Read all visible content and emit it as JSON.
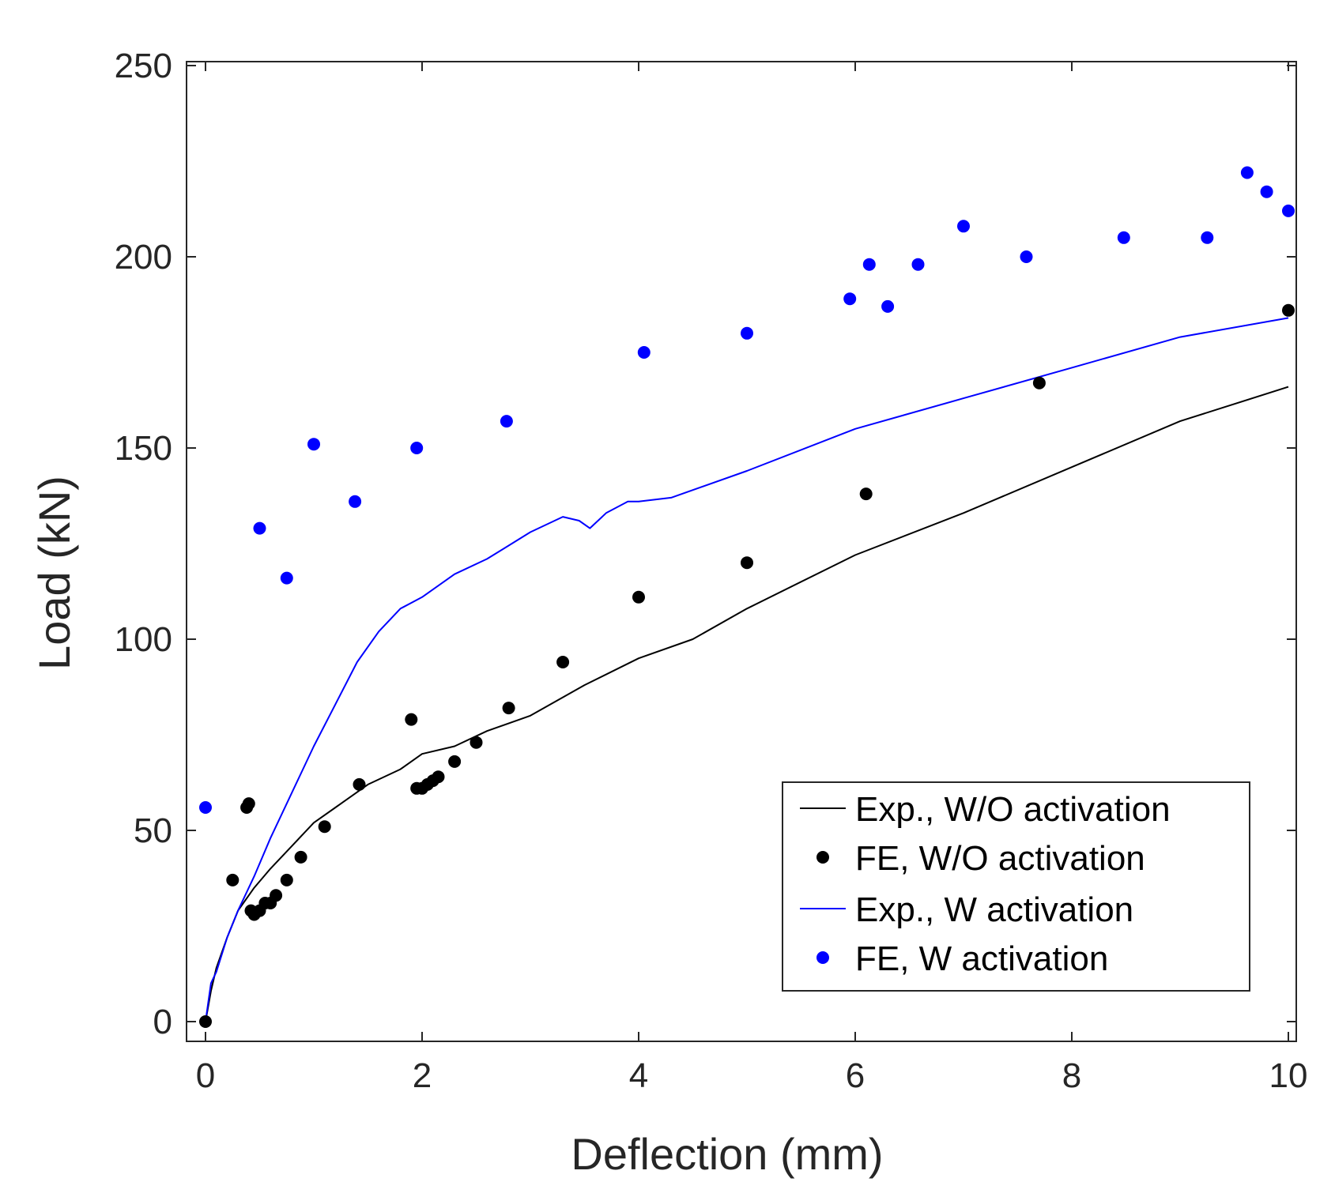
{
  "chart_data": {
    "type": "scatter",
    "title": "",
    "xlabel": "Deflection (mm)",
    "ylabel": "Load (kN)",
    "xlim": [
      0,
      10
    ],
    "ylim": [
      0,
      250
    ],
    "xticks": [
      0,
      2,
      4,
      6,
      8,
      10
    ],
    "yticks": [
      0,
      50,
      100,
      150,
      200,
      250
    ],
    "grid": false,
    "legend_position": "bottom-right",
    "series": [
      {
        "name": "Exp., W/O activation",
        "kind": "line",
        "color": "#000000",
        "x": [
          0,
          0.05,
          0.1,
          0.2,
          0.3,
          0.45,
          0.6,
          0.8,
          1.0,
          1.2,
          1.5,
          1.8,
          2.0,
          2.3,
          2.6,
          3.0,
          3.5,
          4.0,
          4.5,
          5.0,
          6.0,
          7.0,
          8.0,
          9.0,
          10.0
        ],
        "y": [
          0,
          8,
          14,
          22,
          29,
          35,
          40,
          46,
          52,
          56,
          62,
          66,
          70,
          72,
          76,
          80,
          88,
          95,
          100,
          108,
          122,
          133,
          145,
          157,
          166
        ]
      },
      {
        "name": "FE, W/O activation",
        "kind": "scatter",
        "color": "#000000",
        "x": [
          0,
          0.25,
          0.38,
          0.4,
          0.42,
          0.45,
          0.5,
          0.55,
          0.6,
          0.65,
          0.75,
          0.88,
          1.1,
          1.42,
          1.9,
          1.95,
          2.0,
          2.05,
          2.1,
          2.15,
          2.3,
          2.5,
          2.8,
          3.3,
          4.0,
          5.0,
          6.1,
          7.7,
          10.0
        ],
        "y": [
          0,
          37,
          56,
          57,
          29,
          28,
          29,
          31,
          31,
          33,
          37,
          43,
          51,
          62,
          79,
          61,
          61,
          62,
          63,
          64,
          68,
          73,
          82,
          94,
          111,
          120,
          138,
          167,
          186
        ]
      },
      {
        "name": "Exp., W activation",
        "kind": "line",
        "color": "#0000ff",
        "x": [
          0,
          0.05,
          0.1,
          0.2,
          0.3,
          0.45,
          0.6,
          0.8,
          1.0,
          1.2,
          1.4,
          1.6,
          1.8,
          2.0,
          2.3,
          2.6,
          3.0,
          3.3,
          3.45,
          3.55,
          3.7,
          3.9,
          4.0,
          4.3,
          5.0,
          6.0,
          7.0,
          8.0,
          9.0,
          10.0
        ],
        "y": [
          0,
          10,
          13,
          22,
          29,
          38,
          48,
          60,
          72,
          83,
          94,
          102,
          108,
          111,
          117,
          121,
          128,
          132,
          131,
          129,
          133,
          136,
          136,
          137,
          144,
          155,
          163,
          171,
          179,
          184
        ]
      },
      {
        "name": "FE, W activation",
        "kind": "scatter",
        "color": "#0000ff",
        "x": [
          0,
          0.5,
          0.75,
          1.0,
          1.38,
          1.95,
          2.78,
          4.05,
          5.0,
          5.95,
          6.13,
          6.3,
          6.58,
          7.0,
          7.58,
          8.48,
          9.25,
          9.62,
          9.8,
          10.0
        ],
        "y": [
          56,
          129,
          116,
          151,
          136,
          150,
          157,
          175,
          180,
          189,
          198,
          187,
          198,
          208,
          200,
          205,
          205,
          222,
          217,
          212
        ]
      }
    ]
  }
}
